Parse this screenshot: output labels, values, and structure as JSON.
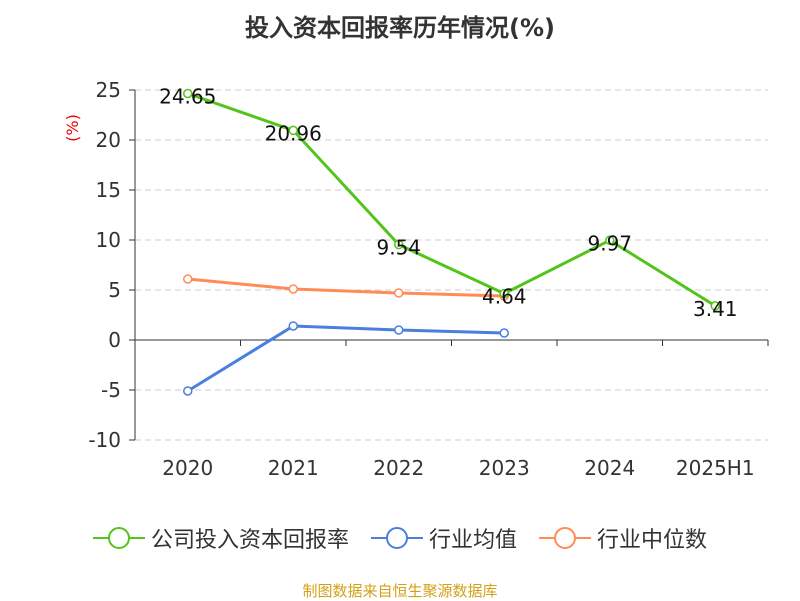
{
  "chart_data": {
    "type": "line",
    "title": "投入资本回报率历年情况(%)",
    "ylabel": "(%)",
    "categories": [
      "2020",
      "2021",
      "2022",
      "2023",
      "2024",
      "2025H1"
    ],
    "ylim": [
      -10,
      25
    ],
    "yticks": [
      25,
      20,
      15,
      10,
      5,
      0,
      -5,
      -10
    ],
    "grid": true,
    "legend_position": "bottom",
    "series": [
      {
        "name": "公司投入资本回报率",
        "color": "#52c41a",
        "values": [
          24.65,
          20.96,
          9.54,
          4.64,
          9.97,
          3.41
        ],
        "labels": [
          "24.65",
          "20.96",
          "9.54",
          "4.64",
          "9.97",
          "3.41"
        ]
      },
      {
        "name": "行业均值",
        "color": "#4a7fe0",
        "values": [
          -5.1,
          1.4,
          1.0,
          0.7,
          null,
          null
        ]
      },
      {
        "name": "行业中位数",
        "color": "#ff8c55",
        "values": [
          6.1,
          5.1,
          4.7,
          4.4,
          null,
          null
        ]
      }
    ]
  },
  "source": "制图数据来自恒生聚源数据库"
}
